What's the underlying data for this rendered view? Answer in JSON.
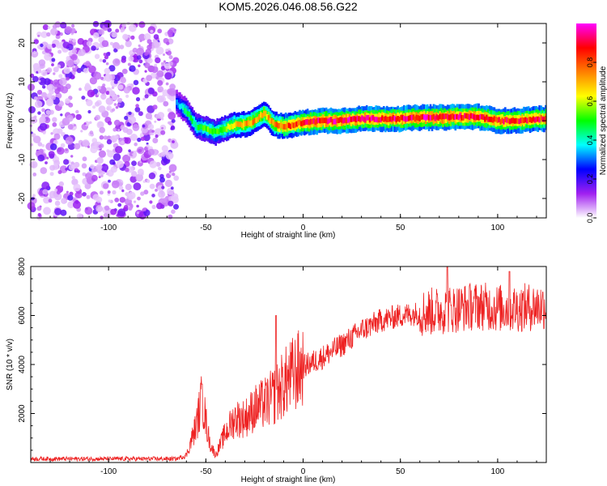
{
  "title": "KOM5.2026.046.08.56.G22",
  "chart_data": [
    {
      "type": "heatmap",
      "name": "spectrogram",
      "xlabel": "Height of straight line (km)",
      "ylabel": "Frequency (Hz)",
      "xlim": [
        -140,
        125
      ],
      "ylim": [
        -25,
        25
      ],
      "xticks": [
        -100,
        -50,
        0,
        50,
        100
      ],
      "yticks": [
        -20,
        -10,
        0,
        10,
        20
      ],
      "noise_region_x": [
        -140,
        -65
      ],
      "ridge": [
        {
          "x": -65,
          "f": 4.5,
          "a": 0.35
        },
        {
          "x": -60,
          "f": 2.5,
          "a": 0.45
        },
        {
          "x": -55,
          "f": -1.5,
          "a": 0.5
        },
        {
          "x": -50,
          "f": -2.0,
          "a": 0.55
        },
        {
          "x": -45,
          "f": -3.0,
          "a": 0.55
        },
        {
          "x": -40,
          "f": -2.0,
          "a": 0.6
        },
        {
          "x": -35,
          "f": -1.0,
          "a": 0.7
        },
        {
          "x": -30,
          "f": -1.0,
          "a": 0.75
        },
        {
          "x": -25,
          "f": 0.0,
          "a": 0.75
        },
        {
          "x": -20,
          "f": 2.0,
          "a": 0.7
        },
        {
          "x": -15,
          "f": -1.0,
          "a": 0.75
        },
        {
          "x": -10,
          "f": -1.5,
          "a": 0.85
        },
        {
          "x": -5,
          "f": -1.0,
          "a": 0.85
        },
        {
          "x": 0,
          "f": -0.5,
          "a": 0.9
        },
        {
          "x": 10,
          "f": 0.0,
          "a": 0.95
        },
        {
          "x": 20,
          "f": 0.0,
          "a": 0.95
        },
        {
          "x": 30,
          "f": 0.5,
          "a": 0.95
        },
        {
          "x": 40,
          "f": 0.5,
          "a": 0.95
        },
        {
          "x": 50,
          "f": 0.5,
          "a": 0.95
        },
        {
          "x": 60,
          "f": 0.8,
          "a": 0.95
        },
        {
          "x": 70,
          "f": 0.8,
          "a": 0.95
        },
        {
          "x": 80,
          "f": 1.0,
          "a": 0.95
        },
        {
          "x": 90,
          "f": 1.0,
          "a": 0.95
        },
        {
          "x": 100,
          "f": 0.0,
          "a": 0.9
        },
        {
          "x": 110,
          "f": 0.0,
          "a": 0.9
        },
        {
          "x": 120,
          "f": 0.5,
          "a": 0.9
        }
      ],
      "colorbar": {
        "label": "Normalized spectral amplitude",
        "range": [
          0,
          1
        ],
        "ticks": [
          0.0,
          0.2,
          0.4,
          0.6,
          0.8
        ],
        "colors": [
          "#ffffff",
          "#a020f0",
          "#0000ff",
          "#00ffff",
          "#00ff00",
          "#ffff00",
          "#ff8000",
          "#ff0000",
          "#ff00ff"
        ]
      }
    },
    {
      "type": "line",
      "name": "snr",
      "xlabel": "Height of straight line (km)",
      "ylabel": "SNR (10 * v/v)",
      "xlim": [
        -140,
        125
      ],
      "ylim": [
        0,
        8000
      ],
      "xticks": [
        -100,
        -50,
        0,
        50,
        100
      ],
      "yticks": [
        2000,
        4000,
        6000,
        8000
      ],
      "color": "#ee2222",
      "envelope": [
        {
          "x": -140,
          "y": 150
        },
        {
          "x": -65,
          "y": 150
        },
        {
          "x": -60,
          "y": 300
        },
        {
          "x": -55,
          "y": 1500
        },
        {
          "x": -52,
          "y": 2600
        },
        {
          "x": -48,
          "y": 800
        },
        {
          "x": -45,
          "y": 300
        },
        {
          "x": -40,
          "y": 1200
        },
        {
          "x": -35,
          "y": 1800
        },
        {
          "x": -30,
          "y": 1800
        },
        {
          "x": -25,
          "y": 2200
        },
        {
          "x": -20,
          "y": 2400
        },
        {
          "x": -15,
          "y": 2700
        },
        {
          "x": -10,
          "y": 3200
        },
        {
          "x": -5,
          "y": 3600
        },
        {
          "x": 0,
          "y": 3900
        },
        {
          "x": 10,
          "y": 4300
        },
        {
          "x": 20,
          "y": 4800
        },
        {
          "x": 30,
          "y": 5400
        },
        {
          "x": 40,
          "y": 5800
        },
        {
          "x": 50,
          "y": 6000
        },
        {
          "x": 60,
          "y": 6100
        },
        {
          "x": 70,
          "y": 6200
        },
        {
          "x": 80,
          "y": 6300
        },
        {
          "x": 90,
          "y": 6400
        },
        {
          "x": 100,
          "y": 6300
        },
        {
          "x": 110,
          "y": 6300
        },
        {
          "x": 125,
          "y": 6400
        }
      ],
      "spikes": [
        {
          "x": -52,
          "y": 3200
        },
        {
          "x": -14,
          "y": 6000
        },
        {
          "x": 74,
          "y": 8000
        },
        {
          "x": 106,
          "y": 7800
        }
      ]
    }
  ]
}
